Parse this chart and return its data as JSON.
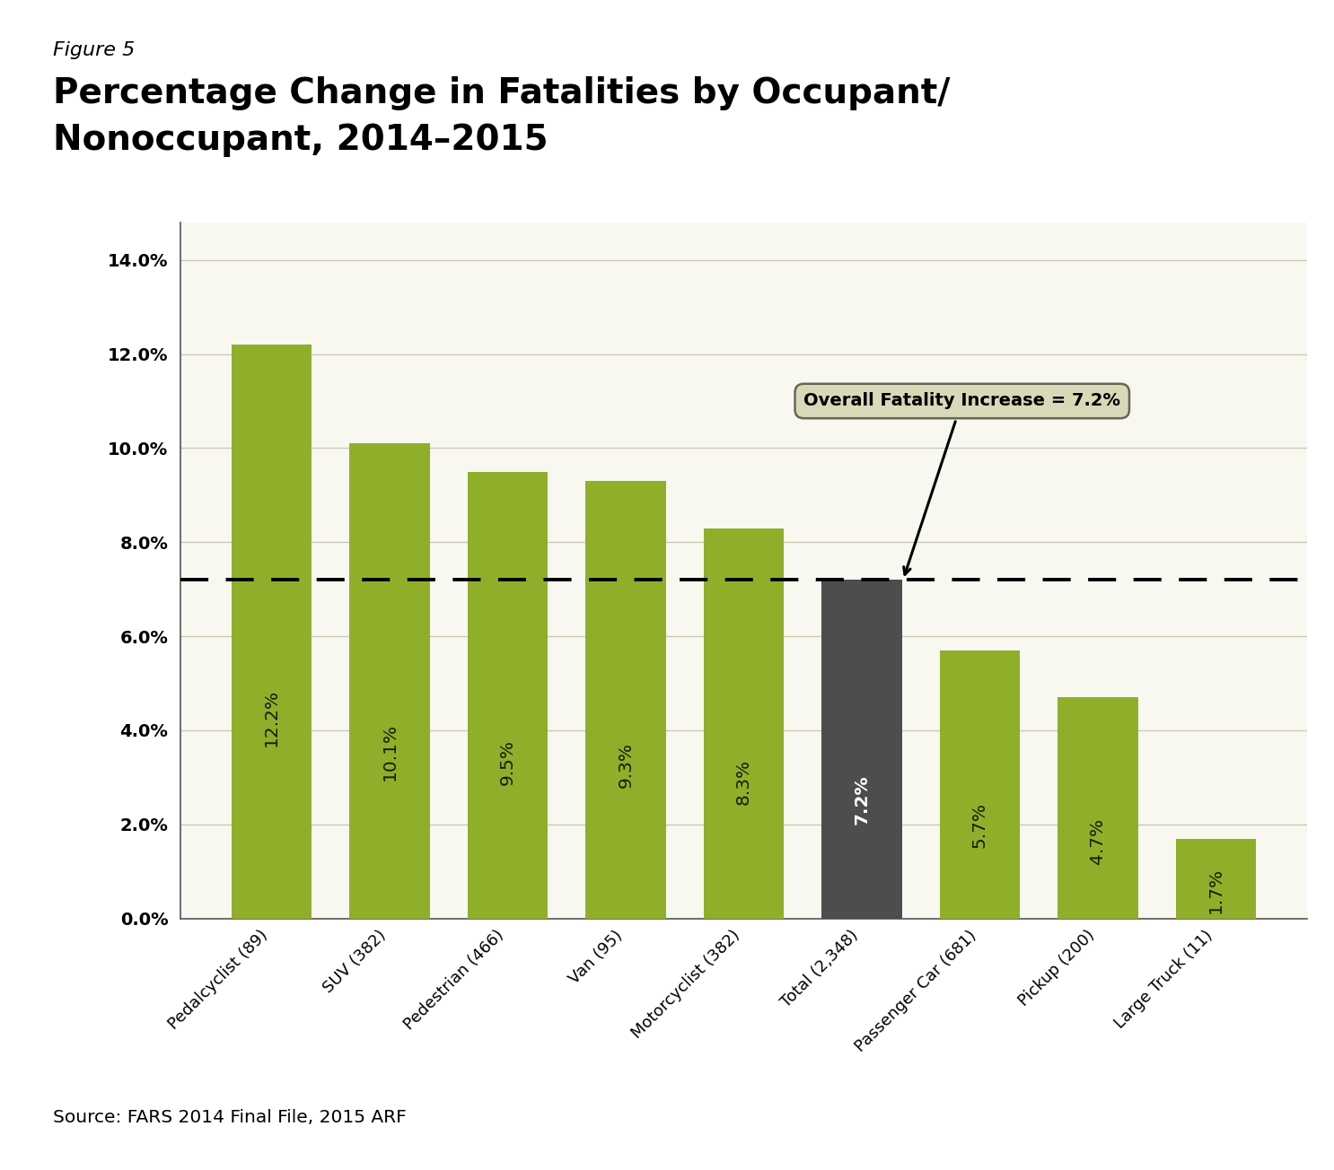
{
  "figure_label": "Figure 5",
  "title_line1": "Percentage Change in Fatalities by Occupant/",
  "title_line2": "Nonoccupant, 2014–2015",
  "source": "Source: FARS 2014 Final File, 2015 ARF",
  "categories": [
    "Pedalcyclist (89)",
    "SUV (382)",
    "Pedestrian (466)",
    "Van (95)",
    "Motorcyclist (382)",
    "Total (2,348)",
    "Passenger Car (681)",
    "Pickup (200)",
    "Large Truck (11)"
  ],
  "values": [
    12.2,
    10.1,
    9.5,
    9.3,
    8.3,
    7.2,
    5.7,
    4.7,
    1.7
  ],
  "bar_colors": [
    "#8faf2a",
    "#8faf2a",
    "#8faf2a",
    "#8faf2a",
    "#8faf2a",
    "#4d4d4d",
    "#8faf2a",
    "#8faf2a",
    "#8faf2a"
  ],
  "bar_label_colors": [
    "#1a1a00",
    "#1a1a00",
    "#1a1a00",
    "#1a1a00",
    "#1a1a00",
    "#ffffff",
    "#1a1a00",
    "#1a1a00",
    "#1a1a00"
  ],
  "dashed_line_value": 7.2,
  "annotation_text": "Overall Fatality Increase = 7.2%",
  "ylim_max": 14.8,
  "yticks": [
    0,
    2.0,
    4.0,
    6.0,
    8.0,
    10.0,
    12.0,
    14.0
  ],
  "ytick_labels": [
    "0.0%",
    "2.0%",
    "4.0%",
    "6.0%",
    "8.0%",
    "10.0%",
    "12.0%",
    "14.0%"
  ],
  "panel_color": "#c8cc78",
  "plot_bg_color": "#f8f8f0",
  "grid_color": "#c8c8b0",
  "annotation_box_color": "#d8d9b8",
  "annotation_box_edge": "#666655"
}
